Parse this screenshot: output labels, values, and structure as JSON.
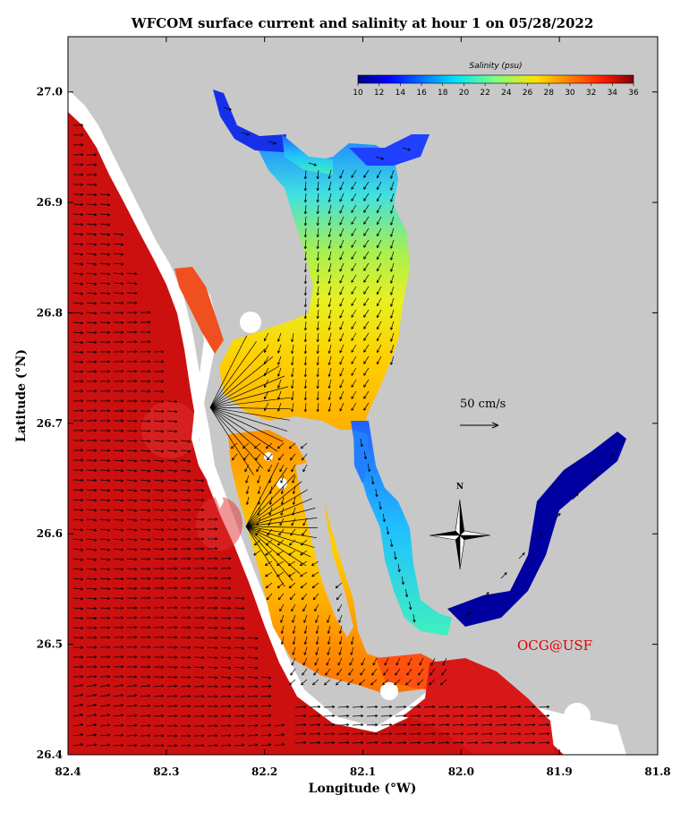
{
  "title": "WFCOM surface current and salinity at hour 1 on 05/28/2022",
  "x_axis": {
    "label": "Longitude (°W)",
    "ticks": [
      "82.4",
      "82.3",
      "82.2",
      "82.1",
      "82.0",
      "81.9",
      "81.8"
    ],
    "values": [
      82.4,
      82.3,
      82.2,
      82.1,
      82.0,
      81.9,
      81.8
    ]
  },
  "y_axis": {
    "label": "Latitude (°N)",
    "ticks": [
      "26.4",
      "26.5",
      "26.6",
      "26.7",
      "26.8",
      "26.9",
      "27.0"
    ],
    "values": [
      26.4,
      26.5,
      26.6,
      26.7,
      26.8,
      26.9,
      27.0
    ]
  },
  "colorbar": {
    "title": "Salinity (psu)",
    "ticks": [
      "10",
      "12",
      "14",
      "16",
      "18",
      "20",
      "22",
      "24",
      "26",
      "28",
      "30",
      "32",
      "34",
      "36"
    ],
    "min": 10,
    "max": 36,
    "colormap": "jet"
  },
  "scale_arrow": {
    "label": "50 cm/s",
    "speed_cm_s": 50
  },
  "compass": {
    "north_label": "N"
  },
  "credit": "OCG@USF",
  "colors": {
    "land": "#c8c8c8",
    "shore": "#ffffff",
    "gulf": "#cc1010",
    "credit": "#e00000"
  }
}
